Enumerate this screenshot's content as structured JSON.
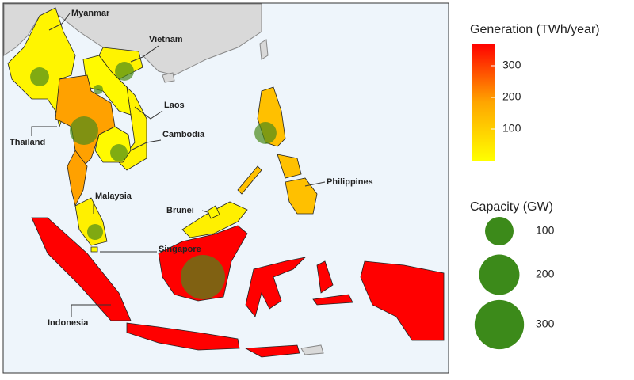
{
  "map": {
    "legend_generation": {
      "title": "Generation (TWh/year)",
      "ticks": [
        100,
        200,
        300
      ],
      "range": [
        0,
        370
      ]
    },
    "legend_capacity": {
      "title": "Capacity (GW)",
      "sizes": [
        100,
        200,
        300
      ]
    },
    "countries": [
      {
        "label": "Myanmar",
        "generation": 20,
        "capacity": 44
      },
      {
        "label": "Vietnam",
        "generation": 25,
        "capacity": 44
      },
      {
        "label": "Laos",
        "generation": 10,
        "capacity": 11
      },
      {
        "label": "Thailand",
        "generation": 190,
        "capacity": 100
      },
      {
        "label": "Cambodia",
        "generation": 10,
        "capacity": 37
      },
      {
        "label": "Malaysia",
        "generation": 30,
        "capacity": 31
      },
      {
        "label": "Singapore",
        "generation": 10
      },
      {
        "label": "Brunei",
        "generation": 15
      },
      {
        "label": "Indonesia",
        "generation": 370,
        "capacity": 242
      },
      {
        "label": "Philippines",
        "generation": 130,
        "capacity": 60
      }
    ]
  }
}
